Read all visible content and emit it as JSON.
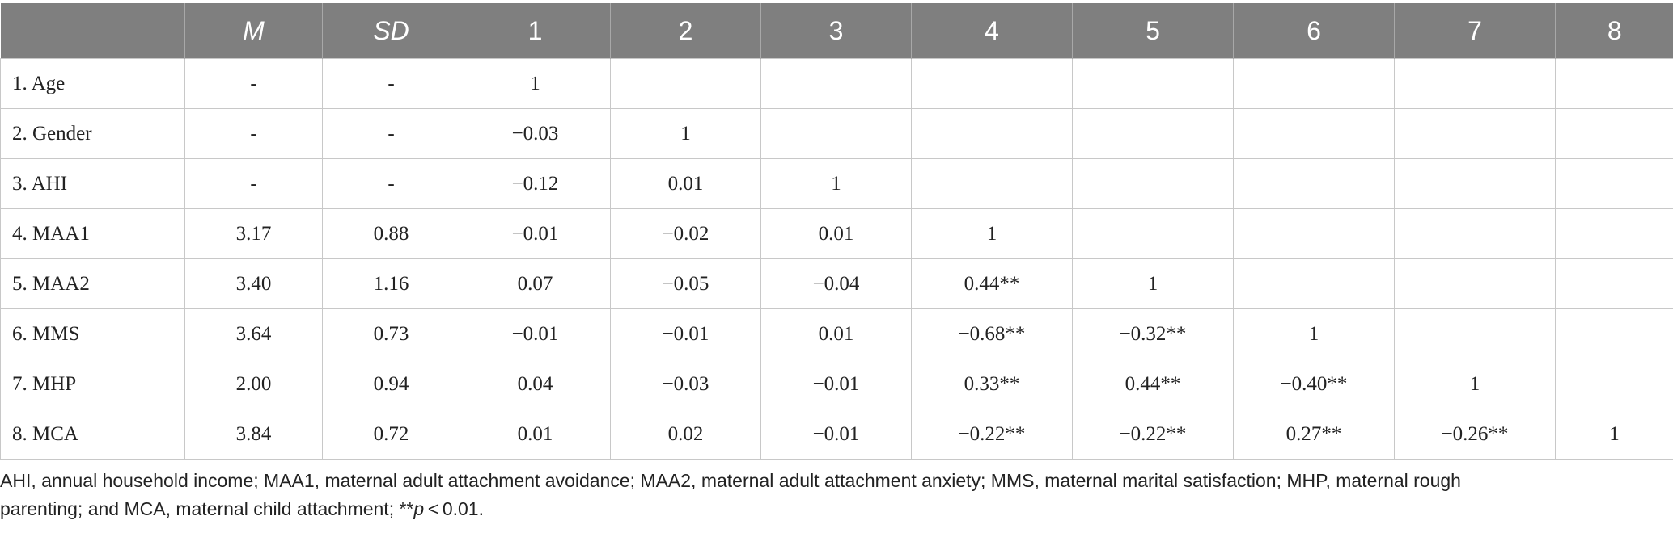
{
  "table": {
    "headers": [
      "",
      "M",
      "SD",
      "1",
      "2",
      "3",
      "4",
      "5",
      "6",
      "7",
      "8"
    ],
    "rows": [
      [
        "1. Age",
        "-",
        "-",
        "1",
        "",
        "",
        "",
        "",
        "",
        "",
        ""
      ],
      [
        "2. Gender",
        "-",
        "-",
        "−0.03",
        "1",
        "",
        "",
        "",
        "",
        "",
        ""
      ],
      [
        "3. AHI",
        "-",
        "-",
        "−0.12",
        "0.01",
        "1",
        "",
        "",
        "",
        "",
        ""
      ],
      [
        "4. MAA1",
        "3.17",
        "0.88",
        "−0.01",
        "−0.02",
        "0.01",
        "1",
        "",
        "",
        "",
        ""
      ],
      [
        "5. MAA2",
        "3.40",
        "1.16",
        "0.07",
        "−0.05",
        "−0.04",
        "0.44**",
        "1",
        "",
        "",
        ""
      ],
      [
        "6. MMS",
        "3.64",
        "0.73",
        "−0.01",
        "−0.01",
        "0.01",
        "−0.68**",
        "−0.32**",
        "1",
        "",
        ""
      ],
      [
        "7. MHP",
        "2.00",
        "0.94",
        "0.04",
        "−0.03",
        "−0.01",
        "0.33**",
        "0.44**",
        "−0.40**",
        "1",
        ""
      ],
      [
        "8. MCA",
        "3.84",
        "0.72",
        "0.01",
        "0.02",
        "−0.01",
        "−0.22**",
        "−0.22**",
        "0.27**",
        "−0.26**",
        "1"
      ]
    ]
  },
  "footnote": {
    "line1": "AHI, annual household income; MAA1, maternal adult attachment avoidance; MAA2, maternal adult attachment anxiety; MMS, maternal marital satisfaction; MHP, maternal rough",
    "line2_prefix": "parenting; and MCA, maternal child attachment; **",
    "line2_p": "p",
    "line2_suffix": " < 0.01."
  }
}
